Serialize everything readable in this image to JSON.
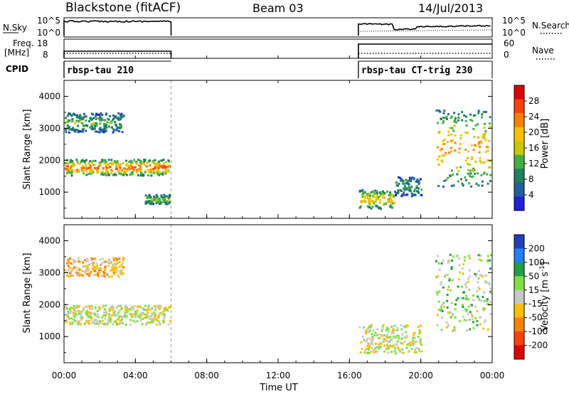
{
  "header": {
    "station": "Blackstone (fitACF)",
    "beam": "Beam 03",
    "date": "14/Jul/2013"
  },
  "noise_panel": {
    "left_label": "N.Sky",
    "left_ticks": [
      "10^5",
      "10^0"
    ],
    "right_label": "N.Search",
    "right_ticks": [
      "10^5",
      "10^0"
    ]
  },
  "freq_panel": {
    "left_label_1": "Freq.",
    "left_label_2": "[MHz]",
    "left_ticks": [
      "18",
      "8"
    ],
    "right_label": "Nave",
    "right_ticks": [
      "60",
      "0"
    ]
  },
  "cpid_panel": {
    "label": "CPID",
    "programs": [
      {
        "name": "rbsp-tau 210",
        "start_h": 0.0,
        "end_h": 6.0
      },
      {
        "name": "rbsp-tau CT-trig 230",
        "start_h": 16.5,
        "end_h": 24.0
      }
    ]
  },
  "power_panel": {
    "ylabel": "Slant Range [km]",
    "yticks": [
      "1000",
      "2000",
      "3000",
      "4000"
    ],
    "colorbar_label": "Power [dB]",
    "colorbar_ticks": [
      "28",
      "24",
      "20",
      "16",
      "12",
      "8",
      "4"
    ],
    "colors": [
      "#e00000",
      "#ff4000",
      "#ff8000",
      "#ffc000",
      "#c8c800",
      "#40b040",
      "#208060",
      "#2060a0",
      "#2020e0"
    ]
  },
  "velocity_panel": {
    "ylabel": "Slant Range [km]",
    "yticks": [
      "1000",
      "2000",
      "3000",
      "4000"
    ],
    "colorbar_label": "Velocity [m s",
    "colorbar_label_sup": "-1",
    "colorbar_label_end": "]",
    "colorbar_ticks": [
      "200",
      "100",
      "50",
      "15",
      "-15",
      "-50",
      "-100",
      "-200"
    ],
    "colors": [
      "#2040c0",
      "#2080ff",
      "#20a040",
      "#80e040",
      "#c8c8c8",
      "#ffc000",
      "#ff8000",
      "#ff4000",
      "#e00000"
    ]
  },
  "x_axis": {
    "label": "Time UT",
    "ticks": [
      "00:00",
      "04:00",
      "08:00",
      "12:00",
      "16:00",
      "20:00",
      "00:00"
    ]
  },
  "chart_data": {
    "type": "heatmap",
    "x_range_hours": [
      0,
      24
    ],
    "y_range_km": [
      180,
      4500
    ],
    "data_coverage_hours": [
      [
        0.0,
        6.0
      ],
      [
        16.5,
        24.0
      ]
    ],
    "power_features": [
      {
        "t": [
          0.0,
          5.9
        ],
        "range_km": [
          1550,
          2050
        ],
        "level_db": 26
      },
      {
        "t": [
          0.0,
          3.3
        ],
        "range_km": [
          2900,
          3500
        ],
        "level_db": 12
      },
      {
        "t": [
          4.5,
          5.9
        ],
        "range_km": [
          650,
          950
        ],
        "level_db": 14
      },
      {
        "t": [
          16.5,
          18.5
        ],
        "range_km": [
          500,
          1100
        ],
        "level_db": 20
      },
      {
        "t": [
          18.5,
          20.0
        ],
        "range_km": [
          900,
          1500
        ],
        "level_db": 10
      },
      {
        "t": [
          20.8,
          23.9
        ],
        "range_km": [
          1200,
          3600
        ],
        "level_db": 22
      }
    ],
    "velocity_features": [
      {
        "t": [
          0.0,
          5.9
        ],
        "range_km": [
          1400,
          2000
        ],
        "velocity_ms": 0
      },
      {
        "t": [
          0.0,
          3.3
        ],
        "range_km": [
          2900,
          3500
        ],
        "velocity_ms": -30
      },
      {
        "t": [
          16.5,
          20.0
        ],
        "range_km": [
          500,
          1400
        ],
        "velocity_ms": 0
      },
      {
        "t": [
          20.8,
          23.9
        ],
        "range_km": [
          1200,
          3600
        ],
        "velocity_ms": 20
      }
    ]
  }
}
